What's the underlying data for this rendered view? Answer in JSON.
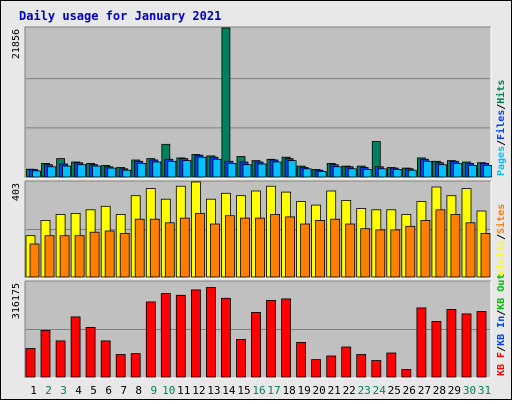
{
  "title": "Daily usage for January 2021",
  "colors": {
    "background": "#e8e8e8",
    "panel": "#c0c0c0",
    "title": "#0000c0",
    "hits": "#00805c",
    "files": "#0040ff",
    "pages": "#00c0ff",
    "visits": "#ffff00",
    "sites": "#ff8000",
    "kb_in": "#0040ff",
    "kb_out": "#00c000",
    "kb_f": "#ff0000",
    "weekend_label": "#00805c",
    "weekday_label": "#000000"
  },
  "chart_data": [
    {
      "type": "bar",
      "panel": "top",
      "ytick_label": "21856",
      "ylim": [
        0,
        21856
      ],
      "legend": [
        {
          "key": "pages",
          "label": "Pages"
        },
        {
          "key": "sep1",
          "label": "/"
        },
        {
          "key": "files",
          "label": "Files"
        },
        {
          "key": "sep2",
          "label": "/"
        },
        {
          "key": "hits",
          "label": "Hits"
        }
      ],
      "categories": [
        "1",
        "2",
        "3",
        "4",
        "5",
        "6",
        "7",
        "8",
        "9",
        "10",
        "11",
        "12",
        "13",
        "14",
        "15",
        "16",
        "17",
        "18",
        "19",
        "20",
        "21",
        "22",
        "23",
        "24",
        "25",
        "26",
        "27",
        "28",
        "29",
        "30",
        "31"
      ],
      "series": [
        {
          "name": "Hits",
          "key": "hits",
          "values": [
            1150,
            2000,
            2700,
            2200,
            2000,
            1700,
            1400,
            2500,
            2700,
            4800,
            2800,
            3300,
            3100,
            21856,
            3000,
            2400,
            2600,
            2900,
            1600,
            1100,
            2000,
            1600,
            1600,
            5200,
            1400,
            1300,
            2800,
            2300,
            2400,
            2200,
            2100
          ]
        },
        {
          "name": "Files",
          "key": "files",
          "values": [
            1100,
            1800,
            1900,
            2100,
            1800,
            1500,
            1200,
            2300,
            2500,
            2600,
            2700,
            3200,
            2900,
            2300,
            2200,
            2200,
            2500,
            2700,
            1400,
            1000,
            1800,
            1500,
            1400,
            1500,
            1300,
            1200,
            2600,
            2100,
            2300,
            2000,
            2000
          ]
        },
        {
          "name": "Pages",
          "key": "pages",
          "values": [
            900,
            1500,
            1600,
            1800,
            1600,
            1300,
            1000,
            2000,
            2200,
            2300,
            2400,
            2900,
            2600,
            2000,
            1800,
            1900,
            2200,
            2400,
            1200,
            800,
            1500,
            1200,
            1100,
            1200,
            1100,
            1000,
            2300,
            1800,
            2000,
            1700,
            1700
          ]
        }
      ]
    },
    {
      "type": "bar",
      "panel": "middle",
      "ytick_label": "403",
      "ylim": [
        0,
        403
      ],
      "legend": [
        {
          "key": "visits",
          "label": "Visits"
        },
        {
          "key": "sep3",
          "label": "/"
        },
        {
          "key": "sites",
          "label": "Sites"
        }
      ],
      "categories": [
        "1",
        "2",
        "3",
        "4",
        "5",
        "6",
        "7",
        "8",
        "9",
        "10",
        "11",
        "12",
        "13",
        "14",
        "15",
        "16",
        "17",
        "18",
        "19",
        "20",
        "21",
        "22",
        "23",
        "24",
        "25",
        "26",
        "27",
        "28",
        "29",
        "30",
        "31"
      ],
      "series": [
        {
          "name": "Visits",
          "key": "visits",
          "values": [
            175,
            240,
            265,
            270,
            285,
            300,
            265,
            345,
            375,
            330,
            385,
            403,
            330,
            355,
            345,
            365,
            385,
            360,
            320,
            305,
            365,
            325,
            290,
            285,
            285,
            265,
            320,
            382,
            345,
            375,
            280
          ]
        },
        {
          "name": "Sites",
          "key": "sites",
          "values": [
            140,
            175,
            175,
            175,
            190,
            195,
            185,
            245,
            245,
            230,
            250,
            270,
            225,
            260,
            250,
            250,
            265,
            255,
            225,
            240,
            245,
            225,
            205,
            200,
            200,
            215,
            240,
            285,
            265,
            230,
            185
          ]
        }
      ]
    },
    {
      "type": "bar",
      "panel": "bottom",
      "ytick_label": "316175",
      "ylim": [
        0,
        316175
      ],
      "legend": [
        {
          "key": "kb_f",
          "label": "KB F"
        },
        {
          "key": "sep4",
          "label": "/"
        },
        {
          "key": "kb_in",
          "label": "KB In"
        },
        {
          "key": "sep5",
          "label": "/"
        },
        {
          "key": "kb_out",
          "label": "KB Out"
        }
      ],
      "categories": [
        "1",
        "2",
        "3",
        "4",
        "5",
        "6",
        "7",
        "8",
        "9",
        "10",
        "11",
        "12",
        "13",
        "14",
        "15",
        "16",
        "17",
        "18",
        "19",
        "20",
        "21",
        "22",
        "23",
        "24",
        "25",
        "26",
        "27",
        "28",
        "29",
        "30",
        "31"
      ],
      "series": [
        {
          "name": "KB F",
          "key": "kb_f",
          "values": [
            95000,
            155000,
            120000,
            200000,
            165000,
            120000,
            75000,
            78000,
            250000,
            278000,
            272000,
            290000,
            298000,
            262000,
            125000,
            215000,
            255000,
            260000,
            115000,
            58000,
            70000,
            100000,
            75000,
            55000,
            80000,
            25000,
            230000,
            185000,
            225000,
            210000,
            218000
          ]
        }
      ]
    }
  ],
  "xaxis": {
    "labels": [
      "1",
      "2",
      "3",
      "4",
      "5",
      "6",
      "7",
      "8",
      "9",
      "10",
      "11",
      "12",
      "13",
      "14",
      "15",
      "16",
      "17",
      "18",
      "19",
      "20",
      "21",
      "22",
      "23",
      "24",
      "25",
      "26",
      "27",
      "28",
      "29",
      "30",
      "31"
    ],
    "weekend": [
      false,
      true,
      true,
      false,
      false,
      false,
      false,
      false,
      true,
      true,
      false,
      false,
      false,
      false,
      false,
      true,
      true,
      false,
      false,
      false,
      false,
      false,
      true,
      true,
      false,
      false,
      false,
      false,
      false,
      true,
      true
    ]
  }
}
